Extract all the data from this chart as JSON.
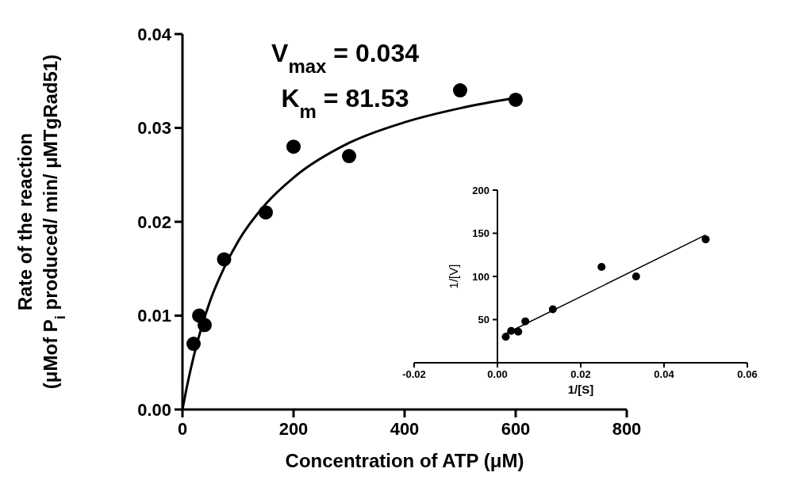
{
  "chart_data": [
    {
      "type": "scatter",
      "xlabel": "Concentration of ATP (μM)",
      "ylabel": "Rate of the reaction\n(μMof P$_{i}$ produced/ min/ μMTgRad51)",
      "xlim": [
        0,
        800
      ],
      "ylim": [
        0,
        0.04
      ],
      "xticks": [
        0,
        200,
        400,
        600,
        800
      ],
      "yticks": [
        {
          "value": 0,
          "label": "0.00"
        },
        {
          "value": 0.01,
          "label": "0.01"
        },
        {
          "value": 0.02,
          "label": "0.02"
        },
        {
          "value": 0.03,
          "label": "0.03"
        },
        {
          "value": 0.04,
          "label": "0.04"
        }
      ],
      "grid": false,
      "annotations": [
        "V$_{max}$ = 0.034",
        "K$_{m}$ = 81.53"
      ],
      "series": [
        {
          "color": "#000000",
          "marker": "circle",
          "x": [
            20,
            30,
            40,
            75,
            150,
            200,
            300,
            500,
            600
          ],
          "values": [
            0.007,
            0.01,
            0.009,
            0.016,
            0.021,
            0.028,
            0.027,
            0.034,
            0.033
          ]
        },
        {
          "type": "line",
          "color": "#000000",
          "marker": "none",
          "x": [
            0,
            10,
            20,
            50,
            75,
            100,
            150,
            200,
            300,
            400,
            500,
            600
          ],
          "values": [
            0,
            0.003,
            0.0056,
            0.0116,
            0.0151,
            0.0179,
            0.0219,
            0.0247,
            0.0284,
            0.0306,
            0.0321,
            0.0332
          ]
        }
      ]
    },
    {
      "type": "scatter",
      "xlabel": "1/[S]",
      "ylabel": "1/[V]",
      "xlim": [
        -0.02,
        0.06
      ],
      "ylim": [
        0,
        200
      ],
      "xticks": [
        {
          "value": -0.02,
          "label": "-0.02"
        },
        {
          "value": 0,
          "label": "0.00"
        },
        {
          "value": 0.02,
          "label": "0.02"
        },
        {
          "value": 0.04,
          "label": "0.04"
        },
        {
          "value": 0.06,
          "label": "0.06"
        }
      ],
      "yticks": [
        50,
        100,
        150,
        200
      ],
      "grid": false,
      "series": [
        {
          "color": "#000000",
          "marker": "circle",
          "x": [
            0.002,
            0.0033,
            0.005,
            0.0067,
            0.0133,
            0.025,
            0.0333,
            0.05
          ],
          "values": [
            30,
            37,
            36,
            48,
            62,
            111,
            100,
            143
          ]
        },
        {
          "type": "line",
          "color": "#000000",
          "marker": "none",
          "x": [
            0.0017,
            0.05
          ],
          "values": [
            33,
            148
          ]
        }
      ]
    }
  ]
}
